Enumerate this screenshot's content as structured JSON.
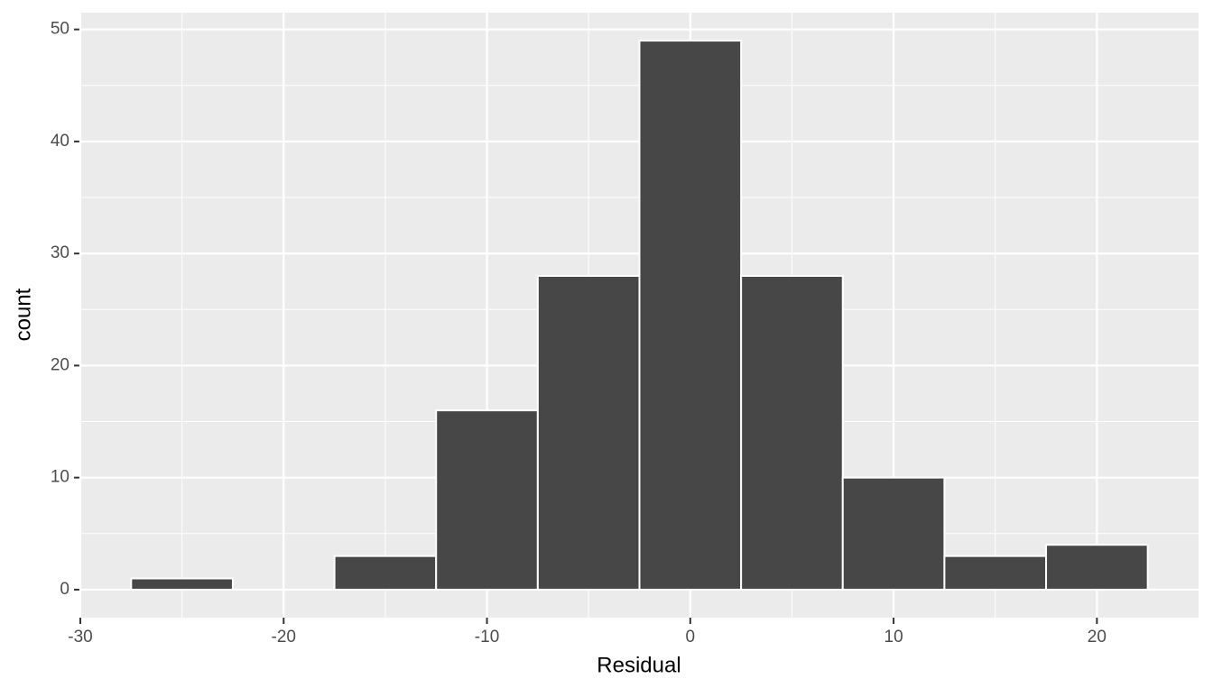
{
  "chart_data": {
    "type": "histogram",
    "x_label": "Residual",
    "y_label": "count",
    "bins": [
      -27.5,
      -22.5,
      -17.5,
      -12.5,
      -7.5,
      -2.5,
      2.5,
      7.5,
      12.5,
      17.5,
      22.5
    ],
    "values": [
      1,
      0,
      3,
      16,
      28,
      49,
      28,
      10,
      3,
      4
    ],
    "color": "#474747",
    "xlim": [
      -30,
      25
    ],
    "xticks": [
      -30,
      -20,
      -10,
      0,
      10,
      20
    ],
    "ylim": [
      -2.5,
      51.5
    ],
    "yticks": [
      0,
      10,
      20,
      30,
      40,
      50
    ],
    "grid": true
  }
}
